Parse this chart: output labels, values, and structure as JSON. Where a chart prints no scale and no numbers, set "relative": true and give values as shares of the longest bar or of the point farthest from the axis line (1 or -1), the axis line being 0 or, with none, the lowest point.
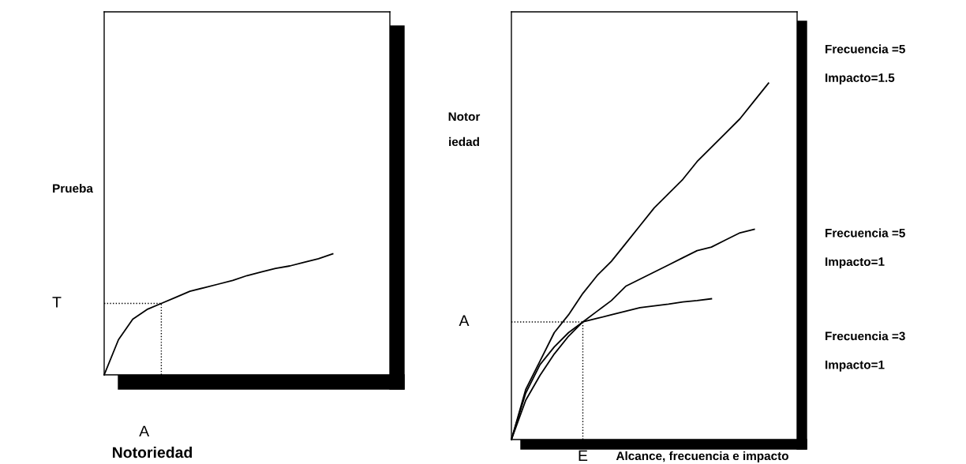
{
  "chart_data": [
    {
      "type": "line",
      "relative": true,
      "ylabel": "Prueba",
      "xlabel": "Notoriedad",
      "categories": [
        null,
        null,
        null,
        null,
        null,
        null,
        null,
        null,
        null,
        null,
        null,
        null,
        null,
        null,
        null,
        null,
        null
      ],
      "series": [
        {
          "color": "#000000",
          "values": [
            0,
            0.29,
            0.46,
            0.54,
            0.59,
            0.64,
            0.69,
            0.72,
            0.75,
            0.78,
            0.82,
            0.85,
            0.88,
            0.9,
            0.93,
            0.96,
            1.0
          ]
        },
        {
          "color": "#000000",
          "line_style": "dotted",
          "values": [
            0.59,
            0.59,
            0.59,
            0.59,
            0.59,
            null,
            null,
            null,
            null,
            null,
            null,
            null,
            null,
            null,
            null,
            null,
            null
          ]
        }
      ],
      "annotations": [
        "T",
        "A"
      ]
    },
    {
      "type": "line",
      "relative": true,
      "ylabel": "Notor\niedad",
      "xlabel": "Alcance, frecuencia e impacto",
      "categories": [
        null,
        null,
        null,
        null,
        null,
        null,
        null,
        null,
        null,
        null,
        null,
        null,
        null,
        null,
        null,
        null,
        null,
        null,
        null
      ],
      "series": [
        {
          "name": "Frecuencia =5\nImpacto=1.5",
          "color": "#000000",
          "values": [
            0,
            0.14,
            0.22,
            0.3,
            0.35,
            0.41,
            0.46,
            0.5,
            0.55,
            0.6,
            0.65,
            0.69,
            0.73,
            0.78,
            0.82,
            0.86,
            0.9,
            0.95,
            1.0
          ]
        },
        {
          "name": "Frecuencia =5\nImpacto=1",
          "color": "#000000",
          "values": [
            0,
            0.11,
            0.18,
            0.24,
            0.29,
            0.33,
            0.36,
            0.39,
            0.43,
            0.45,
            0.47,
            0.49,
            0.51,
            0.53,
            0.54,
            0.56,
            0.58,
            0.59,
            null
          ]
        },
        {
          "name": "Frecuencia =3\nImpacto=1",
          "color": "#000000",
          "values": [
            0,
            0.13,
            0.21,
            0.26,
            0.3,
            0.33,
            0.34,
            0.35,
            0.36,
            0.37,
            0.375,
            0.38,
            0.386,
            0.39,
            0.395,
            null,
            null,
            null,
            null
          ]
        },
        {
          "color": "#000000",
          "line_style": "dotted",
          "values": [
            0.33,
            0.33,
            0.33,
            0.33,
            0.33,
            0.33,
            null,
            null,
            null,
            null,
            null,
            null,
            null,
            null,
            null,
            null,
            null,
            null,
            null
          ]
        }
      ],
      "annotations": [
        "A",
        "E"
      ]
    }
  ]
}
